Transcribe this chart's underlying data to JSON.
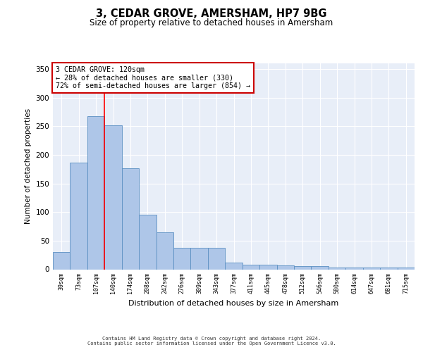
{
  "title": "3, CEDAR GROVE, AMERSHAM, HP7 9BG",
  "subtitle": "Size of property relative to detached houses in Amersham",
  "xlabel": "Distribution of detached houses by size in Amersham",
  "ylabel": "Number of detached properties",
  "categories": [
    "39sqm",
    "73sqm",
    "107sqm",
    "140sqm",
    "174sqm",
    "208sqm",
    "242sqm",
    "276sqm",
    "309sqm",
    "343sqm",
    "377sqm",
    "411sqm",
    "445sqm",
    "478sqm",
    "512sqm",
    "546sqm",
    "580sqm",
    "614sqm",
    "647sqm",
    "681sqm",
    "715sqm"
  ],
  "values": [
    30,
    186,
    268,
    252,
    177,
    95,
    65,
    38,
    38,
    38,
    12,
    8,
    8,
    7,
    5,
    5,
    3,
    3,
    3,
    3,
    3
  ],
  "bar_color": "#aec6e8",
  "bar_edge_color": "#5a8fc2",
  "red_line_index": 2.5,
  "annotation_line1": "3 CEDAR GROVE: 120sqm",
  "annotation_line2": "← 28% of detached houses are smaller (330)",
  "annotation_line3": "72% of semi-detached houses are larger (854) →",
  "annotation_box_color": "#ffffff",
  "annotation_box_edge_color": "#cc0000",
  "ylim": [
    0,
    360
  ],
  "yticks": [
    0,
    50,
    100,
    150,
    200,
    250,
    300,
    350
  ],
  "background_color": "#e8eef8",
  "grid_color": "#ffffff",
  "footer1": "Contains HM Land Registry data © Crown copyright and database right 2024.",
  "footer2": "Contains public sector information licensed under the Open Government Licence v3.0."
}
